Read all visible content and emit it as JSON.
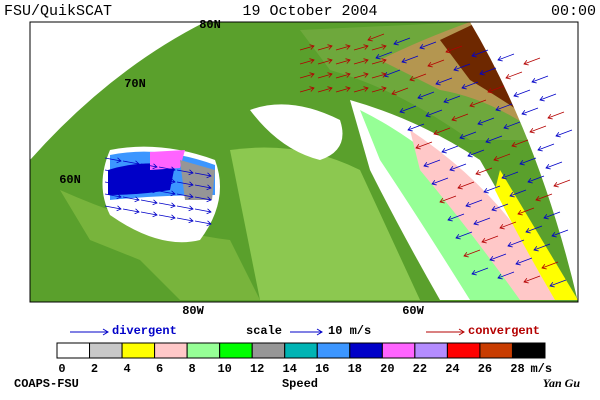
{
  "header": {
    "left": "FSU/QuikSCAT",
    "date": "19 October 2004",
    "time": "00:00"
  },
  "map": {
    "lat_labels": [
      "80N",
      "70N",
      "60N"
    ],
    "lon_labels": [
      "80W",
      "60W"
    ]
  },
  "legend": {
    "divergent": "divergent",
    "scale": "scale",
    "scale_value": "10 m/s",
    "convergent": "convergent"
  },
  "colorbar": {
    "ticks": [
      0,
      2,
      4,
      6,
      8,
      10,
      12,
      14,
      16,
      18,
      20,
      22,
      24,
      26,
      28
    ],
    "unit": "m/s",
    "label": "Speed",
    "colors": [
      "#ffffff",
      "#c8c8c8",
      "#ffff00",
      "#ffc8c8",
      "#96ff96",
      "#00ff00",
      "#969696",
      "#00b4b4",
      "#3c96ff",
      "#0000c8",
      "#ff64ff",
      "#b48cff",
      "#ff0000",
      "#c83c00",
      "#000000"
    ]
  },
  "footer": {
    "left": "COAPS-FSU",
    "right": "Yan Gu"
  }
}
